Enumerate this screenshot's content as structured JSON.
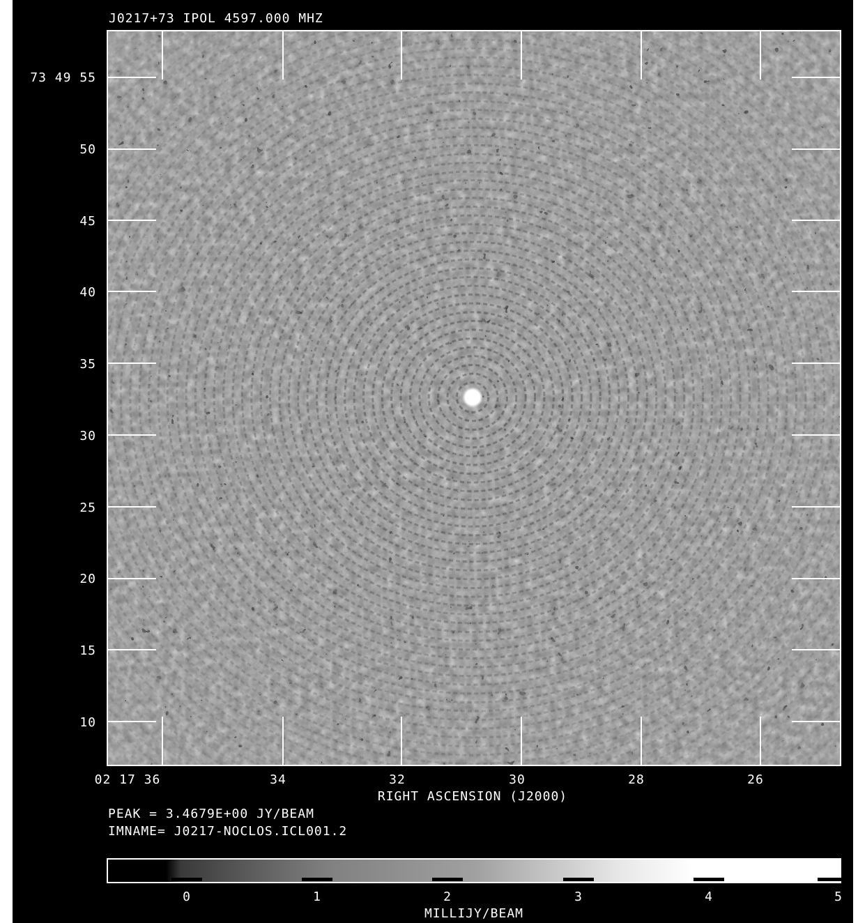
{
  "header": {
    "title": "J0217+73 IPOL  4597.000 MHZ"
  },
  "axes": {
    "y_ticks": [
      "73 49 55",
      "50",
      "45",
      "40",
      "35",
      "30",
      "25",
      "20",
      "15",
      "10"
    ],
    "x_ticks": [
      "02 17 36",
      "34",
      "32",
      "30",
      "28",
      "26"
    ],
    "x_label": "RIGHT ASCENSION (J2000)"
  },
  "info": {
    "peak": "PEAK = 3.4679E+00 JY/BEAM",
    "imname": "IMNAME= J0217-NOCLOS.ICL001.2"
  },
  "colorbar": {
    "ticks": [
      "0",
      "1",
      "2",
      "3",
      "4",
      "5"
    ],
    "label": "MILLIJY/BEAM"
  },
  "colors": {
    "background": "#000000",
    "foreground": "#ffffff",
    "noise_mid": "#8a8a8a"
  }
}
